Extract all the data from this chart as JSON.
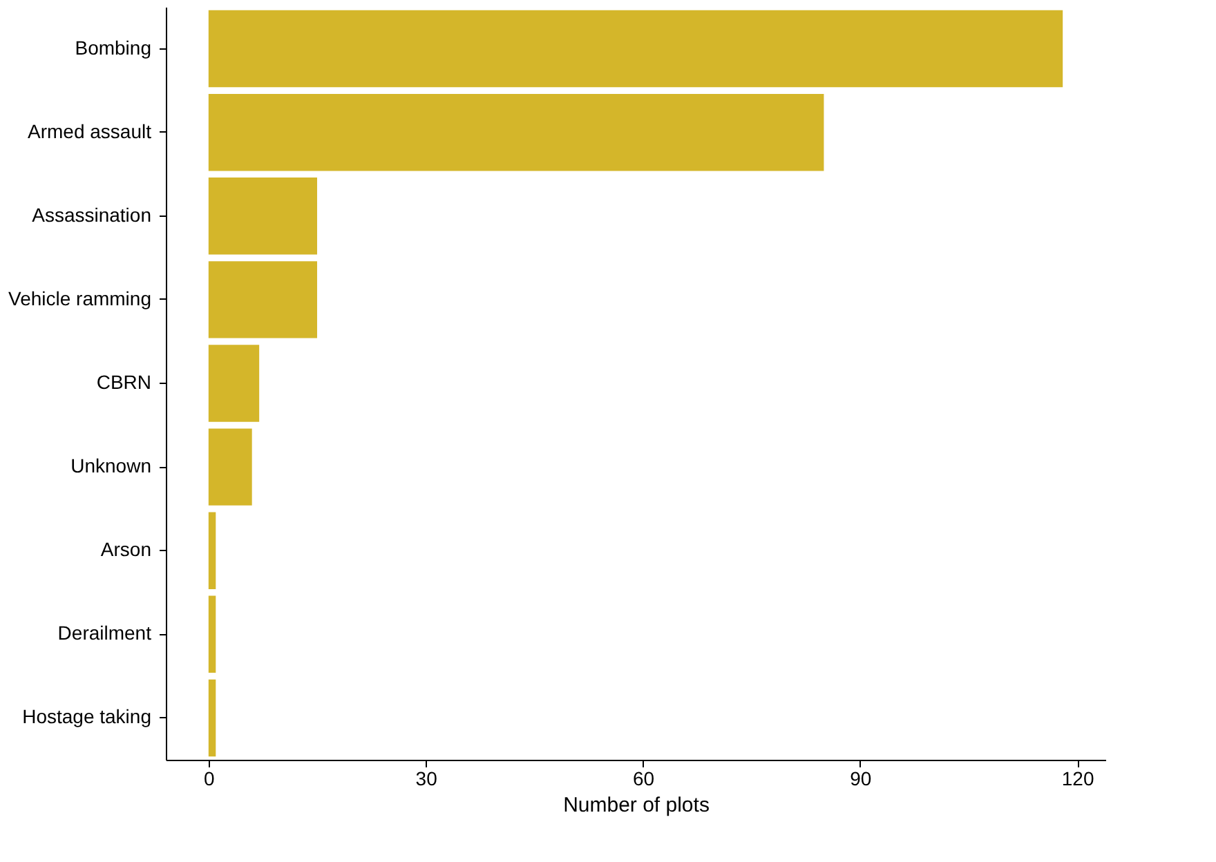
{
  "chart_data": {
    "type": "bar",
    "orientation": "horizontal",
    "xlabel": "Number of plots",
    "categories": [
      "Bombing",
      "Armed assault",
      "Assassination",
      "Vehicle ramming",
      "CBRN",
      "Unknown",
      "Arson",
      "Derailment",
      "Hostage taking"
    ],
    "values": [
      118,
      85,
      15,
      15,
      7,
      6,
      1,
      1,
      1
    ],
    "color": "#d4b62a",
    "xlim": [
      -5.9,
      123.9
    ],
    "xticks": [
      0,
      30,
      60,
      90,
      120
    ],
    "grid": false
  }
}
